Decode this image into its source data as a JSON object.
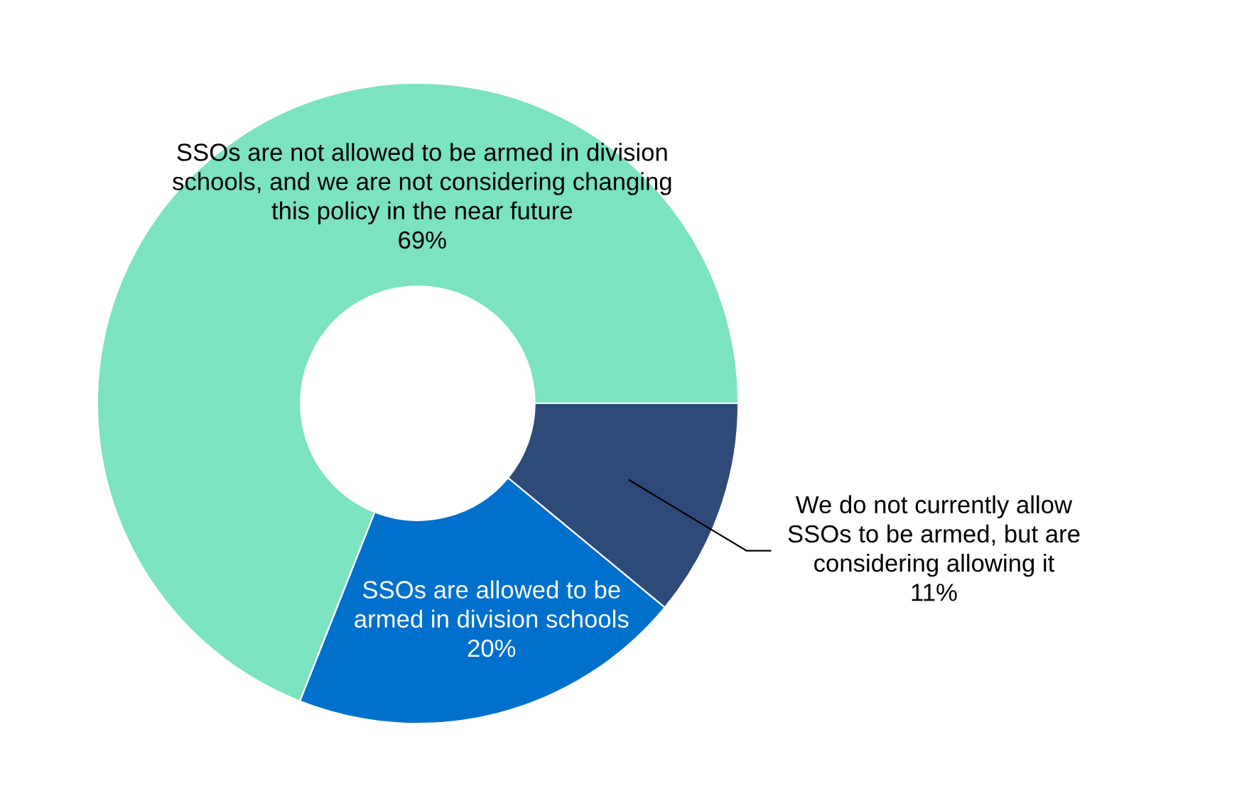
{
  "chart_data": {
    "type": "donut",
    "categories": [
      "We do not currently allow\nSSOs to be armed, but are\nconsidering allowing it",
      "SSOs are allowed to be\narmed in division schools",
      "SSOs are not allowed to be armed in division\nschools, and we are not considering changing\nthis policy in the near future"
    ],
    "values": [
      11,
      20,
      69
    ],
    "colors": [
      "#2e4a78",
      "#0070cd",
      "#7be3bf"
    ],
    "value_labels": [
      "11%",
      "20%",
      "69%"
    ],
    "legend": false
  }
}
